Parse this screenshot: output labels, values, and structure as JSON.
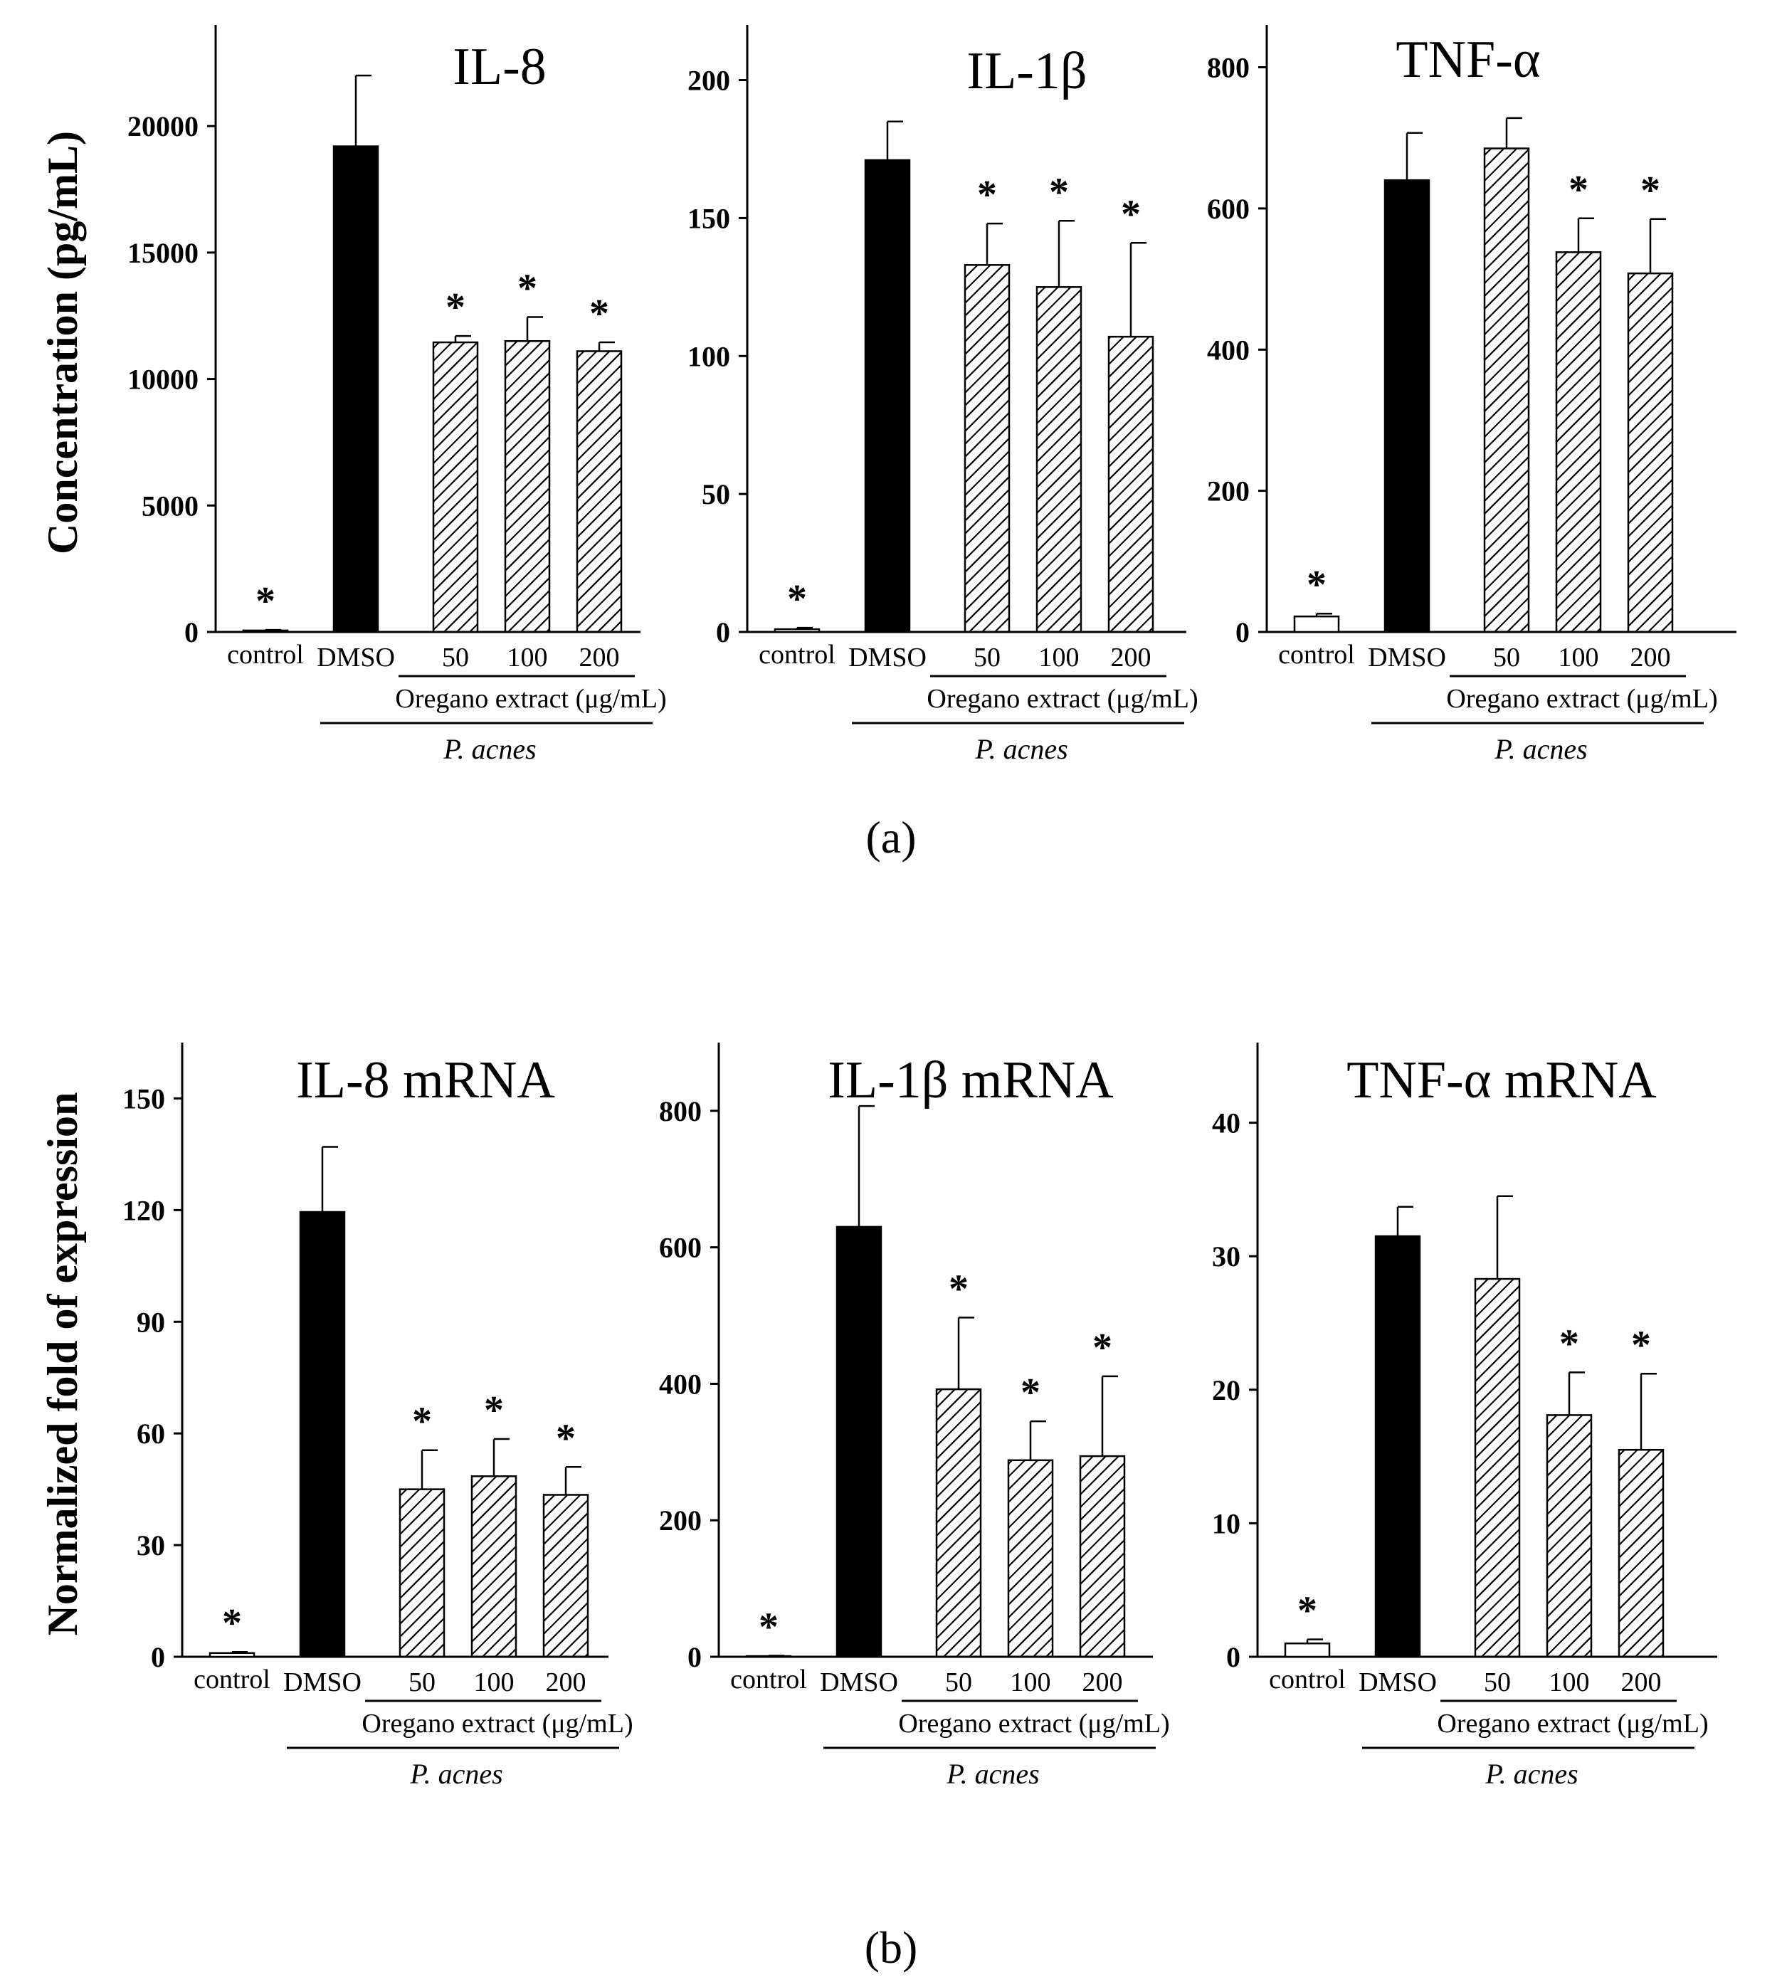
{
  "panel_labels": {
    "a": "(a)",
    "b": "(b)"
  },
  "chart_data": [
    {
      "type": "bar",
      "panel": "a",
      "title": "IL-8",
      "ylabel": "Concentration (pg/mL)",
      "ylim": [
        0,
        24000
      ],
      "yticks": [
        0,
        5000,
        10000,
        15000,
        20000
      ],
      "categories": [
        "control",
        "DMSO",
        "50",
        "100",
        "200"
      ],
      "values": [
        60,
        19200,
        11450,
        11500,
        11100
      ],
      "errors": [
        20,
        2800,
        250,
        950,
        350
      ],
      "styles": [
        "open",
        "solid",
        "hatch",
        "hatch",
        "hatch"
      ],
      "significant": [
        "*",
        "",
        "*",
        "*",
        "*"
      ],
      "group_label": "Oregano extract (μg/mL)",
      "treatment_label": "P. acnes"
    },
    {
      "type": "bar",
      "panel": "a",
      "title": "IL-1β",
      "ylabel": "",
      "ylim": [
        0,
        220
      ],
      "yticks": [
        0,
        50,
        100,
        150,
        200
      ],
      "categories": [
        "control",
        "DMSO",
        "50",
        "100",
        "200"
      ],
      "values": [
        1,
        171,
        133,
        125,
        107
      ],
      "errors": [
        0.5,
        14,
        15,
        24,
        34
      ],
      "styles": [
        "open",
        "solid",
        "hatch",
        "hatch",
        "hatch"
      ],
      "significant": [
        "*",
        "",
        "*",
        "*",
        "*"
      ],
      "group_label": "Oregano extract (μg/mL)",
      "treatment_label": "P. acnes"
    },
    {
      "type": "bar",
      "panel": "a",
      "title": "TNF-α",
      "ylabel": "",
      "ylim": [
        0,
        860
      ],
      "yticks": [
        0,
        200,
        400,
        600,
        800
      ],
      "categories": [
        "control",
        "DMSO",
        "50",
        "100",
        "200"
      ],
      "values": [
        22,
        640,
        685,
        538,
        508
      ],
      "errors": [
        4,
        67,
        43,
        48,
        77
      ],
      "styles": [
        "open",
        "solid",
        "hatch",
        "hatch",
        "hatch"
      ],
      "significant": [
        "*",
        "",
        "",
        "*",
        "*"
      ],
      "group_label": "Oregano extract (μg/mL)",
      "treatment_label": "P. acnes"
    },
    {
      "type": "bar",
      "panel": "b",
      "title": "IL-8 mRNA",
      "ylabel": "Normalized fold of expression",
      "ylim": [
        0,
        165
      ],
      "yticks": [
        0,
        30,
        60,
        90,
        120,
        150
      ],
      "categories": [
        "control",
        "DMSO",
        "50",
        "100",
        "200"
      ],
      "values": [
        1,
        119.5,
        45,
        48.5,
        43.5
      ],
      "errors": [
        0.3,
        17.5,
        10.5,
        10,
        7.5
      ],
      "styles": [
        "open",
        "solid",
        "hatch",
        "hatch",
        "hatch"
      ],
      "significant": [
        "*",
        "",
        "*",
        "*",
        "*"
      ],
      "group_label": "Oregano extract (μg/mL)",
      "treatment_label": "P. acnes"
    },
    {
      "type": "bar",
      "panel": "b",
      "title": "IL-1β mRNA",
      "ylabel": "",
      "ylim": [
        0,
        900
      ],
      "yticks": [
        0,
        200,
        400,
        600,
        800
      ],
      "categories": [
        "control",
        "DMSO",
        "50",
        "100",
        "200"
      ],
      "values": [
        1,
        630,
        392,
        288,
        294
      ],
      "errors": [
        0.5,
        177,
        105,
        57,
        117
      ],
      "styles": [
        "open",
        "solid",
        "hatch",
        "hatch",
        "hatch"
      ],
      "significant": [
        "*",
        "",
        "*",
        "*",
        "*"
      ],
      "group_label": "Oregano extract (μg/mL)",
      "treatment_label": "P. acnes"
    },
    {
      "type": "bar",
      "panel": "b",
      "title": "TNF-α mRNA",
      "ylabel": "",
      "ylim": [
        0,
        46
      ],
      "yticks": [
        0,
        10,
        20,
        30,
        40
      ],
      "categories": [
        "control",
        "DMSO",
        "50",
        "100",
        "200"
      ],
      "values": [
        1,
        31.5,
        28.3,
        18.1,
        15.5
      ],
      "errors": [
        0.3,
        2.2,
        6.2,
        3.2,
        5.7
      ],
      "styles": [
        "open",
        "solid",
        "hatch",
        "hatch",
        "hatch"
      ],
      "significant": [
        "*",
        "",
        "",
        "*",
        "*"
      ],
      "group_label": "Oregano extract (μg/mL)",
      "treatment_label": "P. acnes"
    }
  ]
}
